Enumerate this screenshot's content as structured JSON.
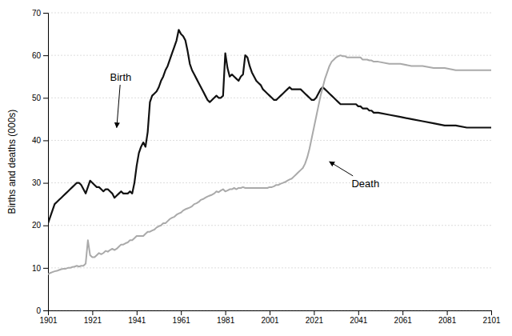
{
  "chart_data": {
    "type": "line",
    "ylabel": "Births and deaths (000s)",
    "xlim": [
      1901,
      2101
    ],
    "ylim": [
      0,
      70
    ],
    "xticks": [
      1901,
      1921,
      1941,
      1961,
      1981,
      2001,
      2021,
      2041,
      2061,
      2081,
      2101
    ],
    "yticks": [
      0,
      10,
      20,
      30,
      40,
      50,
      60,
      70
    ],
    "grid": true,
    "x": [
      1901,
      1902,
      1903,
      1904,
      1905,
      1906,
      1907,
      1908,
      1909,
      1910,
      1911,
      1912,
      1913,
      1914,
      1915,
      1916,
      1917,
      1918,
      1919,
      1920,
      1921,
      1922,
      1923,
      1924,
      1925,
      1926,
      1927,
      1928,
      1929,
      1930,
      1931,
      1932,
      1933,
      1934,
      1935,
      1936,
      1937,
      1938,
      1939,
      1940,
      1941,
      1942,
      1943,
      1944,
      1945,
      1946,
      1947,
      1948,
      1949,
      1950,
      1951,
      1952,
      1953,
      1954,
      1955,
      1956,
      1957,
      1958,
      1959,
      1960,
      1961,
      1962,
      1963,
      1964,
      1965,
      1966,
      1967,
      1968,
      1969,
      1970,
      1971,
      1972,
      1973,
      1974,
      1975,
      1976,
      1977,
      1978,
      1979,
      1980,
      1981,
      1982,
      1983,
      1984,
      1985,
      1986,
      1987,
      1988,
      1989,
      1990,
      1991,
      1992,
      1993,
      1994,
      1995,
      1996,
      1997,
      1998,
      1999,
      2000,
      2001,
      2002,
      2003,
      2004,
      2005,
      2006,
      2007,
      2008,
      2009,
      2010,
      2011,
      2012,
      2013,
      2014,
      2015,
      2016,
      2017,
      2018,
      2019,
      2020,
      2021,
      2022,
      2023,
      2024,
      2025,
      2026,
      2027,
      2028,
      2029,
      2030,
      2031,
      2032,
      2033,
      2034,
      2035,
      2036,
      2037,
      2038,
      2039,
      2040,
      2041,
      2042,
      2043,
      2044,
      2045,
      2046,
      2047,
      2048,
      2050,
      2055,
      2060,
      2065,
      2070,
      2075,
      2080,
      2085,
      2090,
      2095,
      2101
    ],
    "series": [
      {
        "color": "#111111",
        "values": [
          20.5,
          22,
          23.5,
          25,
          25.5,
          26,
          26.5,
          27,
          27.5,
          28,
          28.5,
          29,
          29.5,
          30,
          30,
          29.5,
          28.5,
          27.5,
          29,
          30.5,
          30,
          29.5,
          29,
          29,
          28.5,
          28,
          28.5,
          28.5,
          28,
          27.5,
          26.5,
          27,
          27.5,
          28,
          27.5,
          27.5,
          27.5,
          28,
          27.5,
          30,
          34,
          37,
          38.5,
          39.5,
          38.5,
          42,
          49,
          50.5,
          51,
          51.5,
          52.5,
          54,
          55,
          56.5,
          57.5,
          59,
          60.5,
          62,
          63.5,
          66,
          65,
          64.5,
          63.5,
          61,
          58,
          56.5,
          55.5,
          54.5,
          53.5,
          52.5,
          51.5,
          50.5,
          49.5,
          49,
          49.5,
          50,
          50.5,
          50,
          50,
          50.5,
          60.5,
          57,
          55,
          55.5,
          55,
          54.5,
          54,
          55,
          55.5,
          60,
          59.5,
          57.5,
          56,
          55,
          54,
          53.5,
          53,
          52,
          51.5,
          51,
          50.5,
          50,
          49.5,
          49.5,
          50,
          50.5,
          51,
          51.5,
          52,
          52.5,
          52,
          52,
          52,
          52,
          52,
          51.5,
          51,
          50.5,
          50,
          49.5,
          49.5,
          50,
          51,
          52,
          52.5,
          52,
          51.5,
          51,
          50.5,
          50,
          49.5,
          49,
          48.5,
          48.5,
          48.5,
          48.5,
          48.5,
          48.5,
          48.5,
          48.5,
          48,
          48,
          47.5,
          47.5,
          47.5,
          47,
          47,
          46.5,
          46.5,
          46,
          45.5,
          45,
          44.5,
          44,
          43.5,
          43.5,
          43,
          43,
          43
        ]
      },
      {
        "color": "#aaaaaa",
        "values": [
          8.5,
          8.8,
          9,
          9.2,
          9.3,
          9.5,
          9.7,
          9.8,
          9.8,
          10,
          10,
          10.2,
          10.3,
          10.5,
          10.3,
          10.5,
          10.5,
          11,
          16.5,
          13,
          12.5,
          12.5,
          13,
          13.5,
          13.2,
          13.5,
          14,
          13.8,
          14.2,
          14.5,
          14.2,
          14.5,
          15,
          15.5,
          15.5,
          15.8,
          16,
          16.5,
          16.5,
          17,
          17.5,
          17.5,
          17.5,
          17.5,
          18,
          18.5,
          18.5,
          18.8,
          19,
          19.5,
          19.8,
          20,
          20.5,
          20.5,
          21,
          21.5,
          21.8,
          22,
          22.5,
          22.8,
          23,
          23.5,
          23.8,
          24,
          24.2,
          24.5,
          25,
          25.2,
          25.5,
          26,
          26.2,
          26.5,
          26.8,
          27,
          27.2,
          27.5,
          28,
          27.8,
          28.2,
          28.5,
          28,
          28.2,
          28.5,
          28.5,
          28.8,
          28.5,
          28.8,
          28.8,
          29,
          28.8,
          28.8,
          28.8,
          28.8,
          28.8,
          28.8,
          28.8,
          28.8,
          28.8,
          28.8,
          28.8,
          29,
          29,
          29.2,
          29.5,
          29.5,
          29.8,
          30,
          30.2,
          30.5,
          30.8,
          31,
          31.5,
          32,
          32.5,
          33,
          33.5,
          34.5,
          36,
          38,
          40.5,
          43,
          45.5,
          48,
          50.5,
          52.5,
          54.5,
          56,
          57.5,
          58.5,
          59,
          59.5,
          59.8,
          60,
          59.8,
          59.8,
          59.5,
          59.5,
          59.5,
          59.5,
          59.5,
          59.5,
          59.5,
          59,
          59,
          59,
          58.8,
          58.8,
          58.5,
          58.5,
          58,
          58,
          57.5,
          57.5,
          57,
          57,
          56.5,
          56.5,
          56.5,
          56.5
        ]
      }
    ],
    "annotations": [
      {
        "text": "Birth",
        "x": 1932,
        "y": 43,
        "text_x": 1929,
        "text_y": 54
      },
      {
        "text": "Death",
        "x": 2028,
        "y": 35,
        "text_x": 2038,
        "text_y": 29
      }
    ]
  }
}
